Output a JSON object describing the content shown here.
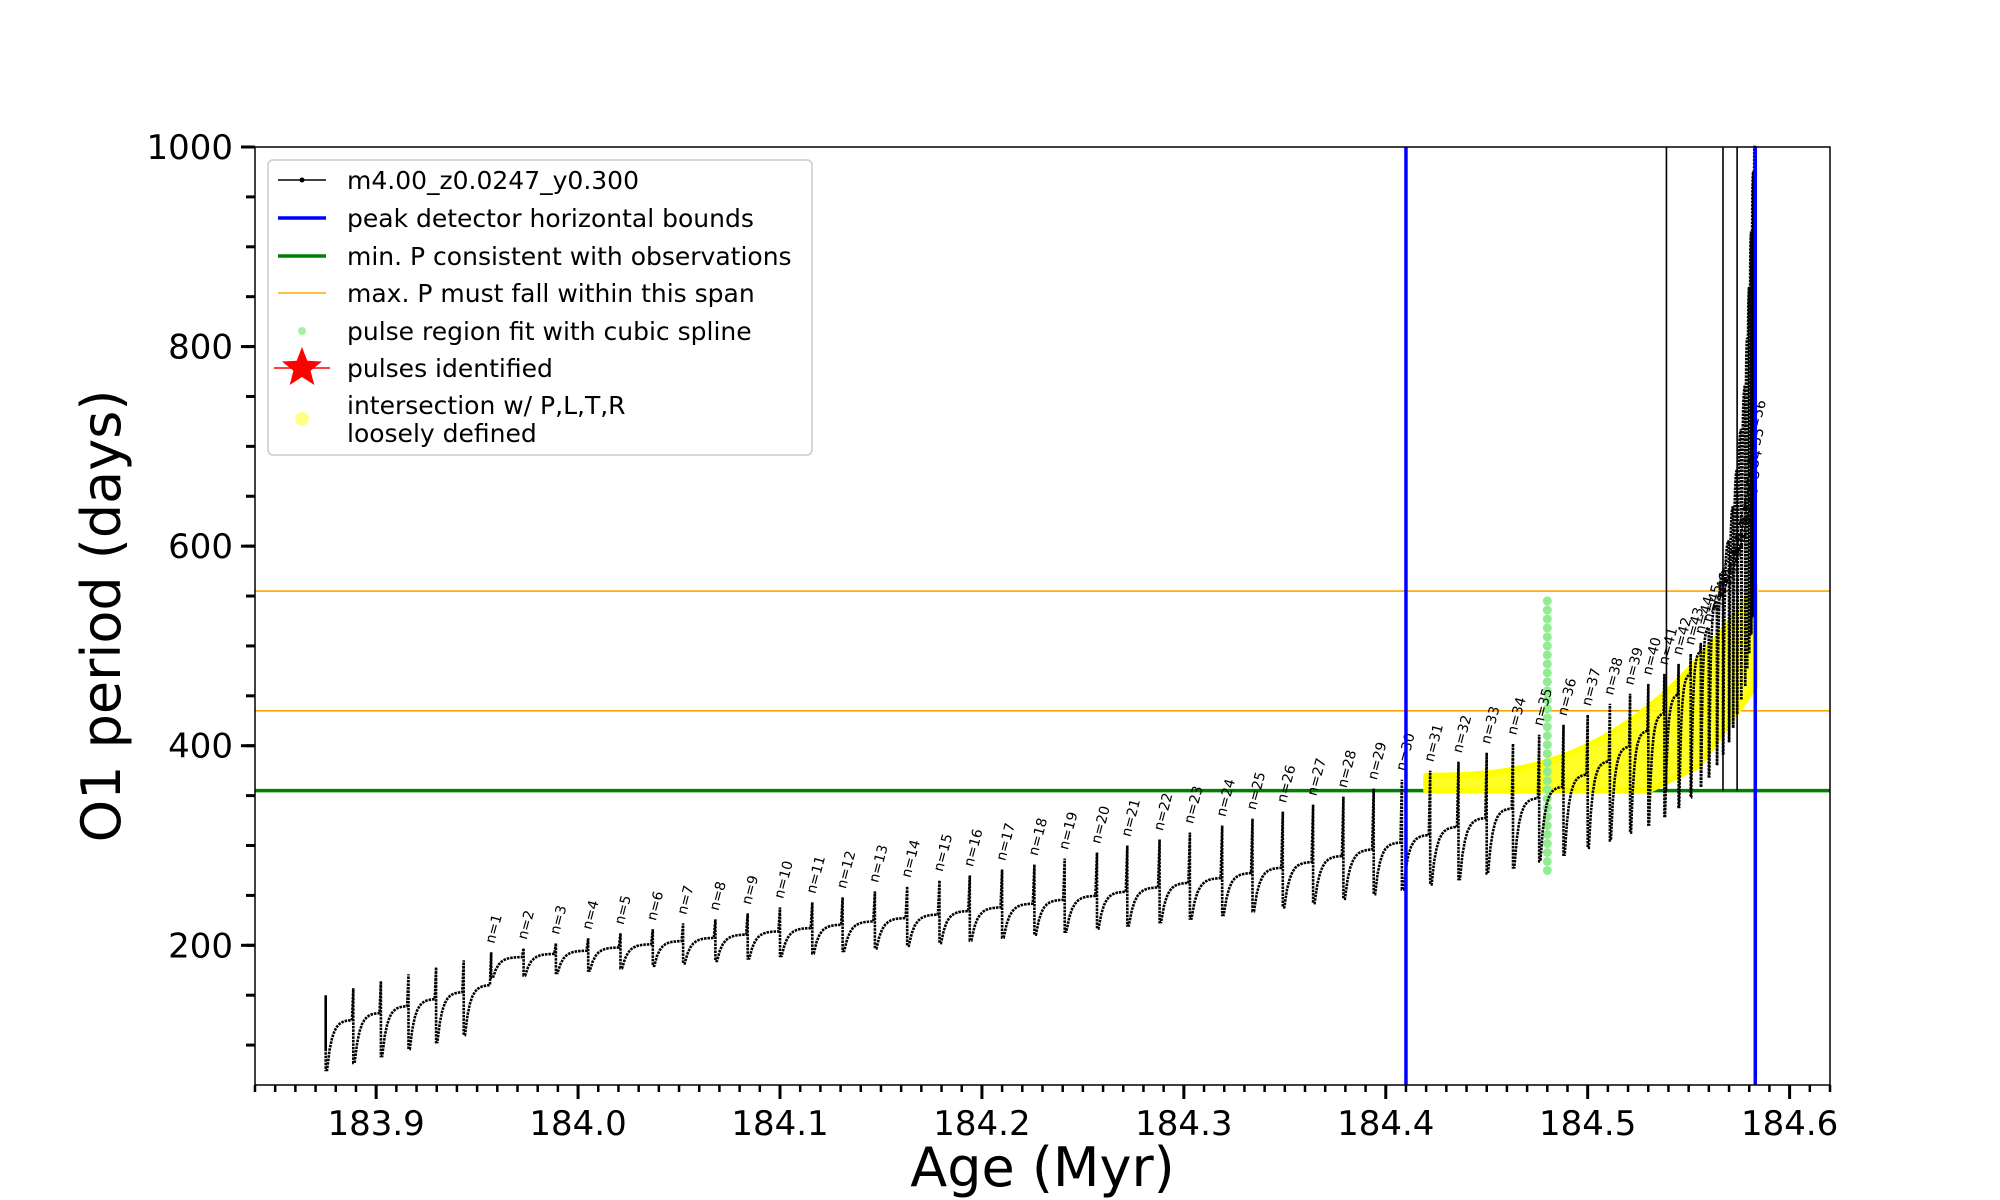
{
  "chart_data": {
    "type": "line",
    "xlabel": "Age (Myr)",
    "ylabel": "O1 period (days)",
    "xlim": [
      183.84,
      184.62
    ],
    "ylim": [
      60,
      1000
    ],
    "xticks": [
      183.9,
      184.0,
      184.1,
      184.2,
      184.3,
      184.4,
      184.5,
      184.6
    ],
    "xtick_labels": [
      "183.9",
      "184.0",
      "184.1",
      "184.2",
      "184.3",
      "184.4",
      "184.5",
      "184.6"
    ],
    "yticks": [
      200,
      400,
      600,
      800,
      1000
    ],
    "ytick_labels": [
      "200",
      "400",
      "600",
      "800",
      "1000"
    ],
    "legend_position": "top-left",
    "legend": [
      {
        "label": "m4.00_z0.0247_y0.300",
        "marker": "line-dot",
        "color": "#000000"
      },
      {
        "label": "peak detector horizontal bounds",
        "marker": "line",
        "color": "#0000ff"
      },
      {
        "label": "min. P consistent with observations",
        "marker": "line",
        "color": "#008000"
      },
      {
        "label": "max. P must fall within this span",
        "marker": "thin-line",
        "color": "#ffa500"
      },
      {
        "label": "pulse region fit with cubic spline",
        "marker": "dot",
        "color": "#90ee90"
      },
      {
        "label": "pulses identified",
        "marker": "star",
        "color": "#ff0000"
      },
      {
        "label": "intersection w/ P,L,T,R",
        "label2": "loosely defined",
        "marker": "dot",
        "color": "#ffff66"
      }
    ],
    "vertical_lines": [
      184.41,
      184.583
    ],
    "min_period_line": 355,
    "max_period_span": [
      435,
      555
    ],
    "colors": {
      "model": "#000000",
      "bounds": "#0000ff",
      "min_p": "#008000",
      "max_p": "#ffa500",
      "spline": "#90ee90",
      "intersection": "#ffff00"
    },
    "track": {
      "start_age": 183.875,
      "end_age": 184.583,
      "n_pulses": 56
    },
    "pulses": [
      {
        "n": 1,
        "age": 183.957,
        "peak": 193
      },
      {
        "n": 2,
        "age": 183.973,
        "peak": 197
      },
      {
        "n": 3,
        "age": 183.989,
        "peak": 202
      },
      {
        "n": 4,
        "age": 184.005,
        "peak": 207
      },
      {
        "n": 5,
        "age": 184.021,
        "peak": 212
      },
      {
        "n": 6,
        "age": 184.037,
        "peak": 216
      },
      {
        "n": 7,
        "age": 184.052,
        "peak": 222
      },
      {
        "n": 8,
        "age": 184.068,
        "peak": 226
      },
      {
        "n": 9,
        "age": 184.084,
        "peak": 232
      },
      {
        "n": 10,
        "age": 184.1,
        "peak": 238
      },
      {
        "n": 11,
        "age": 184.116,
        "peak": 243
      },
      {
        "n": 12,
        "age": 184.131,
        "peak": 248
      },
      {
        "n": 13,
        "age": 184.147,
        "peak": 254
      },
      {
        "n": 14,
        "age": 184.163,
        "peak": 259
      },
      {
        "n": 15,
        "age": 184.179,
        "peak": 265
      },
      {
        "n": 16,
        "age": 184.194,
        "peak": 270
      },
      {
        "n": 17,
        "age": 184.21,
        "peak": 276
      },
      {
        "n": 18,
        "age": 184.226,
        "peak": 281
      },
      {
        "n": 19,
        "age": 184.241,
        "peak": 287
      },
      {
        "n": 20,
        "age": 184.257,
        "peak": 293
      },
      {
        "n": 21,
        "age": 184.272,
        "peak": 300
      },
      {
        "n": 22,
        "age": 184.288,
        "peak": 306
      },
      {
        "n": 23,
        "age": 184.303,
        "peak": 313
      },
      {
        "n": 24,
        "age": 184.319,
        "peak": 320
      },
      {
        "n": 25,
        "age": 184.334,
        "peak": 327
      },
      {
        "n": 26,
        "age": 184.349,
        "peak": 334
      },
      {
        "n": 27,
        "age": 184.364,
        "peak": 341
      },
      {
        "n": 28,
        "age": 184.379,
        "peak": 349
      },
      {
        "n": 29,
        "age": 184.394,
        "peak": 357
      },
      {
        "n": 30,
        "age": 184.408,
        "peak": 366
      },
      {
        "n": 31,
        "age": 184.422,
        "peak": 375
      },
      {
        "n": 32,
        "age": 184.436,
        "peak": 384
      },
      {
        "n": 33,
        "age": 184.45,
        "peak": 393
      },
      {
        "n": 34,
        "age": 184.463,
        "peak": 402
      },
      {
        "n": 35,
        "age": 184.476,
        "peak": 411
      },
      {
        "n": 36,
        "age": 184.488,
        "peak": 421
      },
      {
        "n": 37,
        "age": 184.5,
        "peak": 431
      },
      {
        "n": 38,
        "age": 184.511,
        "peak": 442
      },
      {
        "n": 39,
        "age": 184.521,
        "peak": 452
      },
      {
        "n": 40,
        "age": 184.53,
        "peak": 462
      },
      {
        "n": 41,
        "age": 184.538,
        "peak": 472
      },
      {
        "n": 42,
        "age": 184.545,
        "peak": 482
      },
      {
        "n": 43,
        "age": 184.551,
        "peak": 492
      },
      {
        "n": 44,
        "age": 184.556,
        "peak": 503
      },
      {
        "n": 45,
        "age": 184.56,
        "peak": 515
      },
      {
        "n": 46,
        "age": 184.564,
        "peak": 527
      },
      {
        "n": 47,
        "age": 184.567,
        "peak": 540
      },
      {
        "n": 48,
        "age": 184.57,
        "peak": 553
      },
      {
        "n": 49,
        "age": 184.572,
        "peak": 566
      },
      {
        "n": 50,
        "age": 184.574,
        "peak": 580
      },
      {
        "n": 51,
        "age": 184.576,
        "peak": 595
      },
      {
        "n": 52,
        "age": 184.578,
        "peak": 612
      },
      {
        "n": 53,
        "age": 184.579,
        "peak": 630
      },
      {
        "n": 54,
        "age": 184.58,
        "peak": 650
      },
      {
        "n": 55,
        "age": 184.581,
        "peak": 672
      },
      {
        "n": 56,
        "age": 184.582,
        "peak": 700
      }
    ],
    "spline_region": {
      "age": 184.48,
      "p_range": [
        275,
        545
      ]
    },
    "intersection_region": {
      "age_range": [
        184.42,
        184.583
      ],
      "p_floor": 355,
      "p_top": 560
    }
  }
}
